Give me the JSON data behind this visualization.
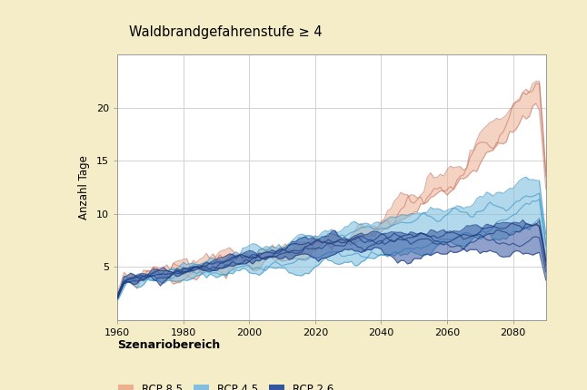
{
  "title": "Waldbrandgefahrenstufe ≥ 4",
  "ylabel": "Anzahl Tage",
  "xlabel_legend": "Szenariobereich",
  "legend_labels": [
    "RCP 8.5",
    "RCP 4.5",
    "RCP 2.6"
  ],
  "background_color": "#F5ECC8",
  "plot_bg_color": "#FFFFFF",
  "color_rcp85": "#EBB090",
  "color_rcp45": "#80BFE0",
  "color_rcp26": "#3355A0",
  "line_rcp85": "#C07060",
  "line_rcp45": "#3090C0",
  "line_rcp26": "#1A3A80",
  "xlim": [
    1960,
    2090
  ],
  "ylim": [
    0,
    25
  ],
  "yticks": [
    5,
    10,
    15,
    20
  ],
  "xticks": [
    1960,
    1980,
    2000,
    2020,
    2040,
    2060,
    2080
  ],
  "seed": 42
}
